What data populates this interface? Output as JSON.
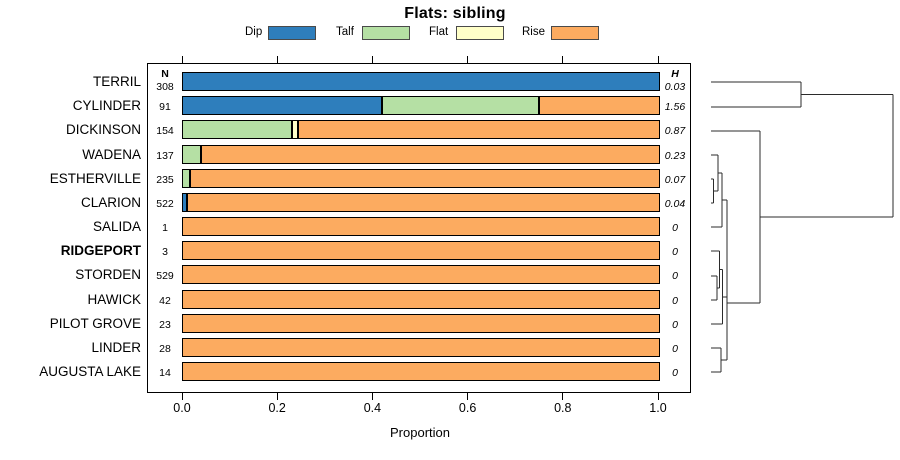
{
  "title": "Flats: sibling",
  "legend": {
    "items": [
      {
        "label": "Dip",
        "color": "#2E7EBC"
      },
      {
        "label": "Talf",
        "color": "#B5E0A4"
      },
      {
        "label": "Flat",
        "color": "#FFFFC8"
      },
      {
        "label": "Rise",
        "color": "#FCAB60"
      }
    ]
  },
  "columns": {
    "n_header": "N",
    "h_header": "H"
  },
  "axis": {
    "ticks": [
      "0.0",
      "0.2",
      "0.4",
      "0.6",
      "0.8",
      "1.0"
    ],
    "xlabel": "Proportion",
    "xlim": [
      0,
      1
    ]
  },
  "chart_data": {
    "type": "bar",
    "subtype": "horizontal-stacked-proportion",
    "title": "Flats: sibling",
    "xlabel": "Proportion",
    "xlim": [
      0,
      1
    ],
    "grid": false,
    "legend_position": "top",
    "categories": [
      "TERRIL",
      "CYLINDER",
      "DICKINSON",
      "WADENA",
      "ESTHERVILLE",
      "CLARION",
      "SALIDA",
      "RIDGEPORT",
      "STORDEN",
      "HAWICK",
      "PILOT GROVE",
      "LINDER",
      "AUGUSTA LAKE"
    ],
    "n_values": [
      308,
      91,
      154,
      137,
      235,
      522,
      1,
      3,
      529,
      42,
      23,
      28,
      14
    ],
    "h_values": [
      "0.03",
      "1.56",
      "0.87",
      "0.23",
      "0.07",
      "0.04",
      "0",
      "0",
      "0",
      "0",
      "0",
      "0",
      "0"
    ],
    "highlighted_category": "RIDGEPORT",
    "rows": [
      {
        "name": "TERRIL",
        "bold": false,
        "n": "308",
        "h": "0.03",
        "segments": [
          {
            "label": "Dip",
            "value": 1.0
          }
        ]
      },
      {
        "name": "CYLINDER",
        "bold": false,
        "n": "91",
        "h": "1.56",
        "segments": [
          {
            "label": "Dip",
            "value": 0.416
          },
          {
            "label": "Talf",
            "value": 0.329
          },
          {
            "label": "Rise",
            "value": 0.255
          }
        ]
      },
      {
        "name": "DICKINSON",
        "bold": false,
        "n": "154",
        "h": "0.87",
        "segments": [
          {
            "label": "Talf",
            "value": 0.227
          },
          {
            "label": "Flat",
            "value": 0.012
          },
          {
            "label": "Rise",
            "value": 0.761
          }
        ]
      },
      {
        "name": "WADENA",
        "bold": false,
        "n": "137",
        "h": "0.23",
        "segments": [
          {
            "label": "Talf",
            "value": 0.036
          },
          {
            "label": "Rise",
            "value": 0.964
          }
        ]
      },
      {
        "name": "ESTHERVILLE",
        "bold": false,
        "n": "235",
        "h": "0.07",
        "segments": [
          {
            "label": "Talf",
            "value": 0.012
          },
          {
            "label": "Rise",
            "value": 0.988
          }
        ]
      },
      {
        "name": "CLARION",
        "bold": false,
        "n": "522",
        "h": "0.04",
        "segments": [
          {
            "label": "Dip",
            "value": 0.006
          },
          {
            "label": "Rise",
            "value": 0.994
          }
        ]
      },
      {
        "name": "SALIDA",
        "bold": false,
        "n": "1",
        "h": "0",
        "segments": [
          {
            "label": "Rise",
            "value": 1.0
          }
        ]
      },
      {
        "name": "RIDGEPORT",
        "bold": true,
        "n": "3",
        "h": "0",
        "segments": [
          {
            "label": "Rise",
            "value": 1.0
          }
        ]
      },
      {
        "name": "STORDEN",
        "bold": false,
        "n": "529",
        "h": "0",
        "segments": [
          {
            "label": "Rise",
            "value": 1.0
          }
        ]
      },
      {
        "name": "HAWICK",
        "bold": false,
        "n": "42",
        "h": "0",
        "segments": [
          {
            "label": "Rise",
            "value": 1.0
          }
        ]
      },
      {
        "name": "PILOT GROVE",
        "bold": false,
        "n": "23",
        "h": "0",
        "segments": [
          {
            "label": "Rise",
            "value": 1.0
          }
        ]
      },
      {
        "name": "LINDER",
        "bold": false,
        "n": "28",
        "h": "0",
        "segments": [
          {
            "label": "Rise",
            "value": 1.0
          }
        ]
      },
      {
        "name": "AUGUSTA LAKE",
        "bold": false,
        "n": "14",
        "h": "0",
        "segments": [
          {
            "label": "Rise",
            "value": 1.0
          }
        ]
      }
    ],
    "dendrogram": {
      "side": "right",
      "tight_pairs": [
        [
          "TERRIL",
          "CYLINDER"
        ],
        [
          "ESTHERVILLE",
          "CLARION"
        ],
        [
          "STORDEN",
          "HAWICK"
        ],
        [
          "LINDER",
          "AUGUSTA LAKE"
        ]
      ],
      "structure": "((TERRIL,CYLINDER),(DICKINSON,(((WADENA,(ESTHERVILLE,CLARION)),SALIDA),((RIDGEPORT,(STORDEN,HAWICK)),PILOT GROVE),(LINDER,AUGUSTA LAKE))))"
    }
  }
}
